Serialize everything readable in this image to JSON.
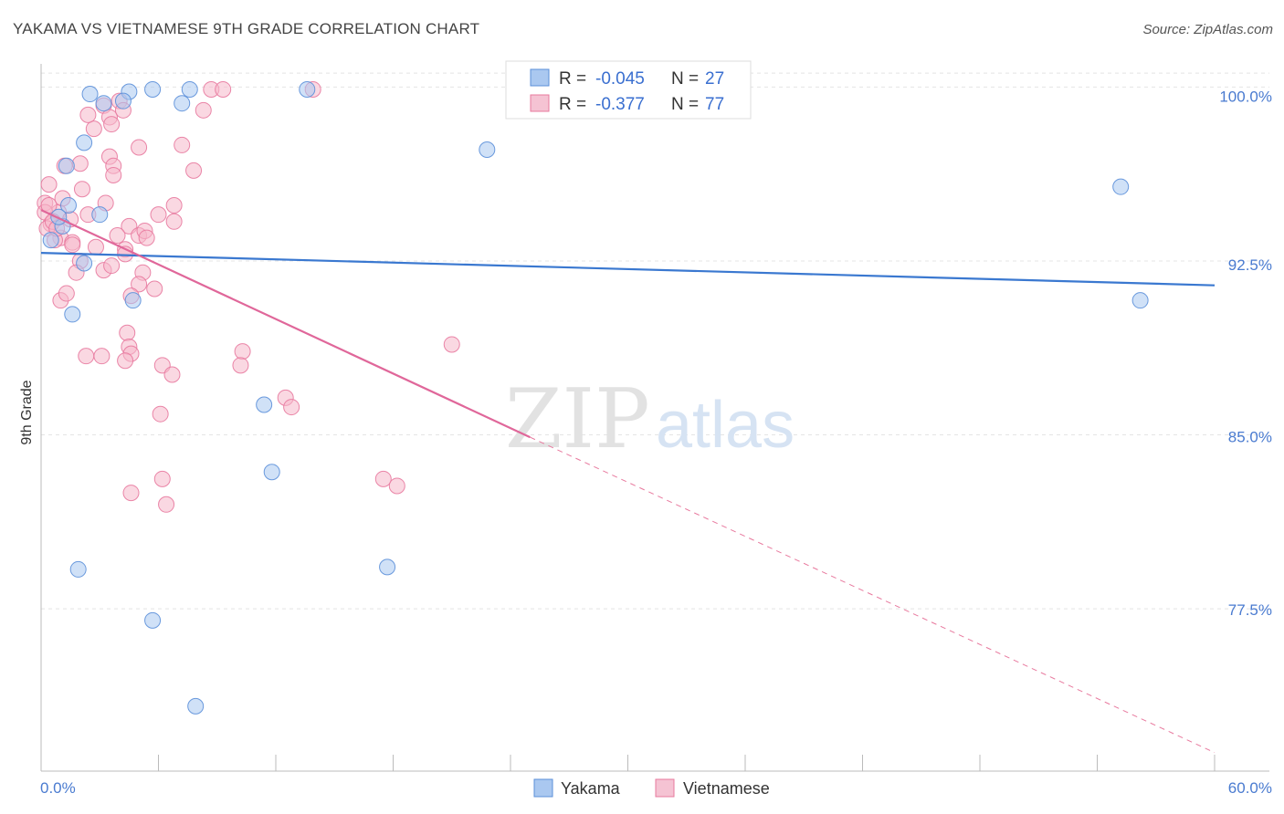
{
  "title": "YAKAMA VS VIETNAMESE 9TH GRADE CORRELATION CHART",
  "source": "Source: ZipAtlas.com",
  "watermark": {
    "zip": "ZIP",
    "atlas": "atlas"
  },
  "chart_data": {
    "type": "scatter",
    "ylabel": "9th Grade",
    "xlim": [
      0,
      60
    ],
    "ylim": [
      70.5,
      101.0
    ],
    "x_tick_labels": [
      "0.0%",
      "60.0%"
    ],
    "y_ticks": [
      77.5,
      85.0,
      92.5,
      100.0
    ],
    "y_tick_labels": [
      "77.5%",
      "85.0%",
      "92.5%",
      "100.0%"
    ],
    "grid": true,
    "legend_position": "top-center",
    "series": [
      {
        "name": "Yakama",
        "color": "#5b8fd9",
        "fill": "#aac8f0",
        "R": "-0.045",
        "N": "27",
        "trend": {
          "x0": 0,
          "y0": 92.85,
          "x1": 60,
          "y1": 91.45,
          "dashed_from": null
        },
        "points": [
          [
            2.5,
            99.7
          ],
          [
            4.5,
            99.8
          ],
          [
            4.2,
            99.4
          ],
          [
            3.2,
            99.3
          ],
          [
            2.2,
            97.6
          ],
          [
            1.3,
            96.6
          ],
          [
            3.0,
            94.5
          ],
          [
            1.1,
            94.0
          ],
          [
            0.5,
            93.4
          ],
          [
            2.2,
            92.4
          ],
          [
            1.6,
            90.2
          ],
          [
            4.7,
            90.8
          ],
          [
            7.2,
            99.3
          ],
          [
            7.6,
            99.9
          ],
          [
            5.7,
            99.9
          ],
          [
            13.6,
            99.9
          ],
          [
            22.8,
            97.3
          ],
          [
            55.2,
            95.7
          ],
          [
            56.2,
            90.8
          ],
          [
            11.4,
            86.3
          ],
          [
            11.8,
            83.4
          ],
          [
            1.9,
            79.2
          ],
          [
            17.7,
            79.3
          ],
          [
            5.7,
            77.0
          ],
          [
            7.9,
            73.3
          ],
          [
            1.4,
            94.9
          ],
          [
            0.9,
            94.4
          ]
        ]
      },
      {
        "name": "Vietnamese",
        "color": "#e8799e",
        "fill": "#f5b8cb",
        "R": "-0.377",
        "N": "77",
        "trend": {
          "x0": 0,
          "y0": 94.7,
          "x1": 25,
          "y1": 84.9,
          "dashed_from": 25,
          "x2": 60,
          "y2": 71.3
        },
        "points": [
          [
            4.0,
            99.4
          ],
          [
            3.2,
            99.2
          ],
          [
            2.7,
            98.2
          ],
          [
            3.5,
            98.7
          ],
          [
            3.6,
            98.4
          ],
          [
            8.3,
            99.0
          ],
          [
            8.7,
            99.9
          ],
          [
            13.9,
            99.9
          ],
          [
            5.0,
            97.4
          ],
          [
            3.5,
            97.0
          ],
          [
            2.0,
            96.7
          ],
          [
            3.7,
            96.6
          ],
          [
            1.2,
            96.6
          ],
          [
            7.8,
            96.4
          ],
          [
            2.1,
            95.6
          ],
          [
            3.3,
            95.0
          ],
          [
            0.4,
            95.8
          ],
          [
            0.2,
            95.0
          ],
          [
            0.9,
            94.6
          ],
          [
            1.5,
            94.3
          ],
          [
            0.5,
            94.1
          ],
          [
            0.3,
            93.9
          ],
          [
            1.0,
            93.5
          ],
          [
            1.6,
            93.3
          ],
          [
            0.2,
            94.6
          ],
          [
            0.6,
            94.2
          ],
          [
            2.4,
            94.5
          ],
          [
            6.8,
            94.9
          ],
          [
            6.0,
            94.5
          ],
          [
            4.5,
            94.0
          ],
          [
            5.0,
            93.6
          ],
          [
            5.3,
            93.8
          ],
          [
            3.9,
            93.6
          ],
          [
            4.3,
            93.0
          ],
          [
            2.0,
            92.5
          ],
          [
            3.2,
            92.1
          ],
          [
            4.3,
            92.8
          ],
          [
            5.2,
            92.0
          ],
          [
            5.0,
            91.5
          ],
          [
            5.8,
            91.3
          ],
          [
            1.0,
            90.8
          ],
          [
            1.3,
            91.1
          ],
          [
            4.4,
            89.4
          ],
          [
            4.5,
            88.8
          ],
          [
            4.6,
            88.5
          ],
          [
            4.3,
            88.2
          ],
          [
            2.3,
            88.4
          ],
          [
            3.1,
            88.4
          ],
          [
            6.2,
            88.0
          ],
          [
            6.7,
            87.6
          ],
          [
            10.3,
            88.6
          ],
          [
            10.2,
            88.0
          ],
          [
            21.0,
            88.9
          ],
          [
            6.1,
            85.9
          ],
          [
            12.5,
            86.6
          ],
          [
            12.8,
            86.2
          ],
          [
            6.2,
            83.1
          ],
          [
            4.6,
            82.5
          ],
          [
            6.4,
            82.0
          ],
          [
            17.5,
            83.1
          ],
          [
            18.2,
            82.8
          ],
          [
            0.7,
            93.4
          ],
          [
            1.8,
            92.0
          ],
          [
            7.2,
            97.5
          ],
          [
            3.6,
            92.3
          ],
          [
            4.2,
            99.0
          ],
          [
            0.4,
            94.9
          ],
          [
            1.1,
            95.2
          ],
          [
            9.3,
            99.9
          ],
          [
            5.4,
            93.5
          ],
          [
            2.8,
            93.1
          ],
          [
            6.8,
            94.2
          ],
          [
            0.8,
            93.9
          ],
          [
            1.6,
            93.2
          ],
          [
            3.7,
            96.2
          ],
          [
            2.4,
            98.8
          ],
          [
            4.6,
            91.0
          ]
        ]
      }
    ]
  },
  "legend": {
    "r_label": "R =",
    "n_label": "N ="
  }
}
